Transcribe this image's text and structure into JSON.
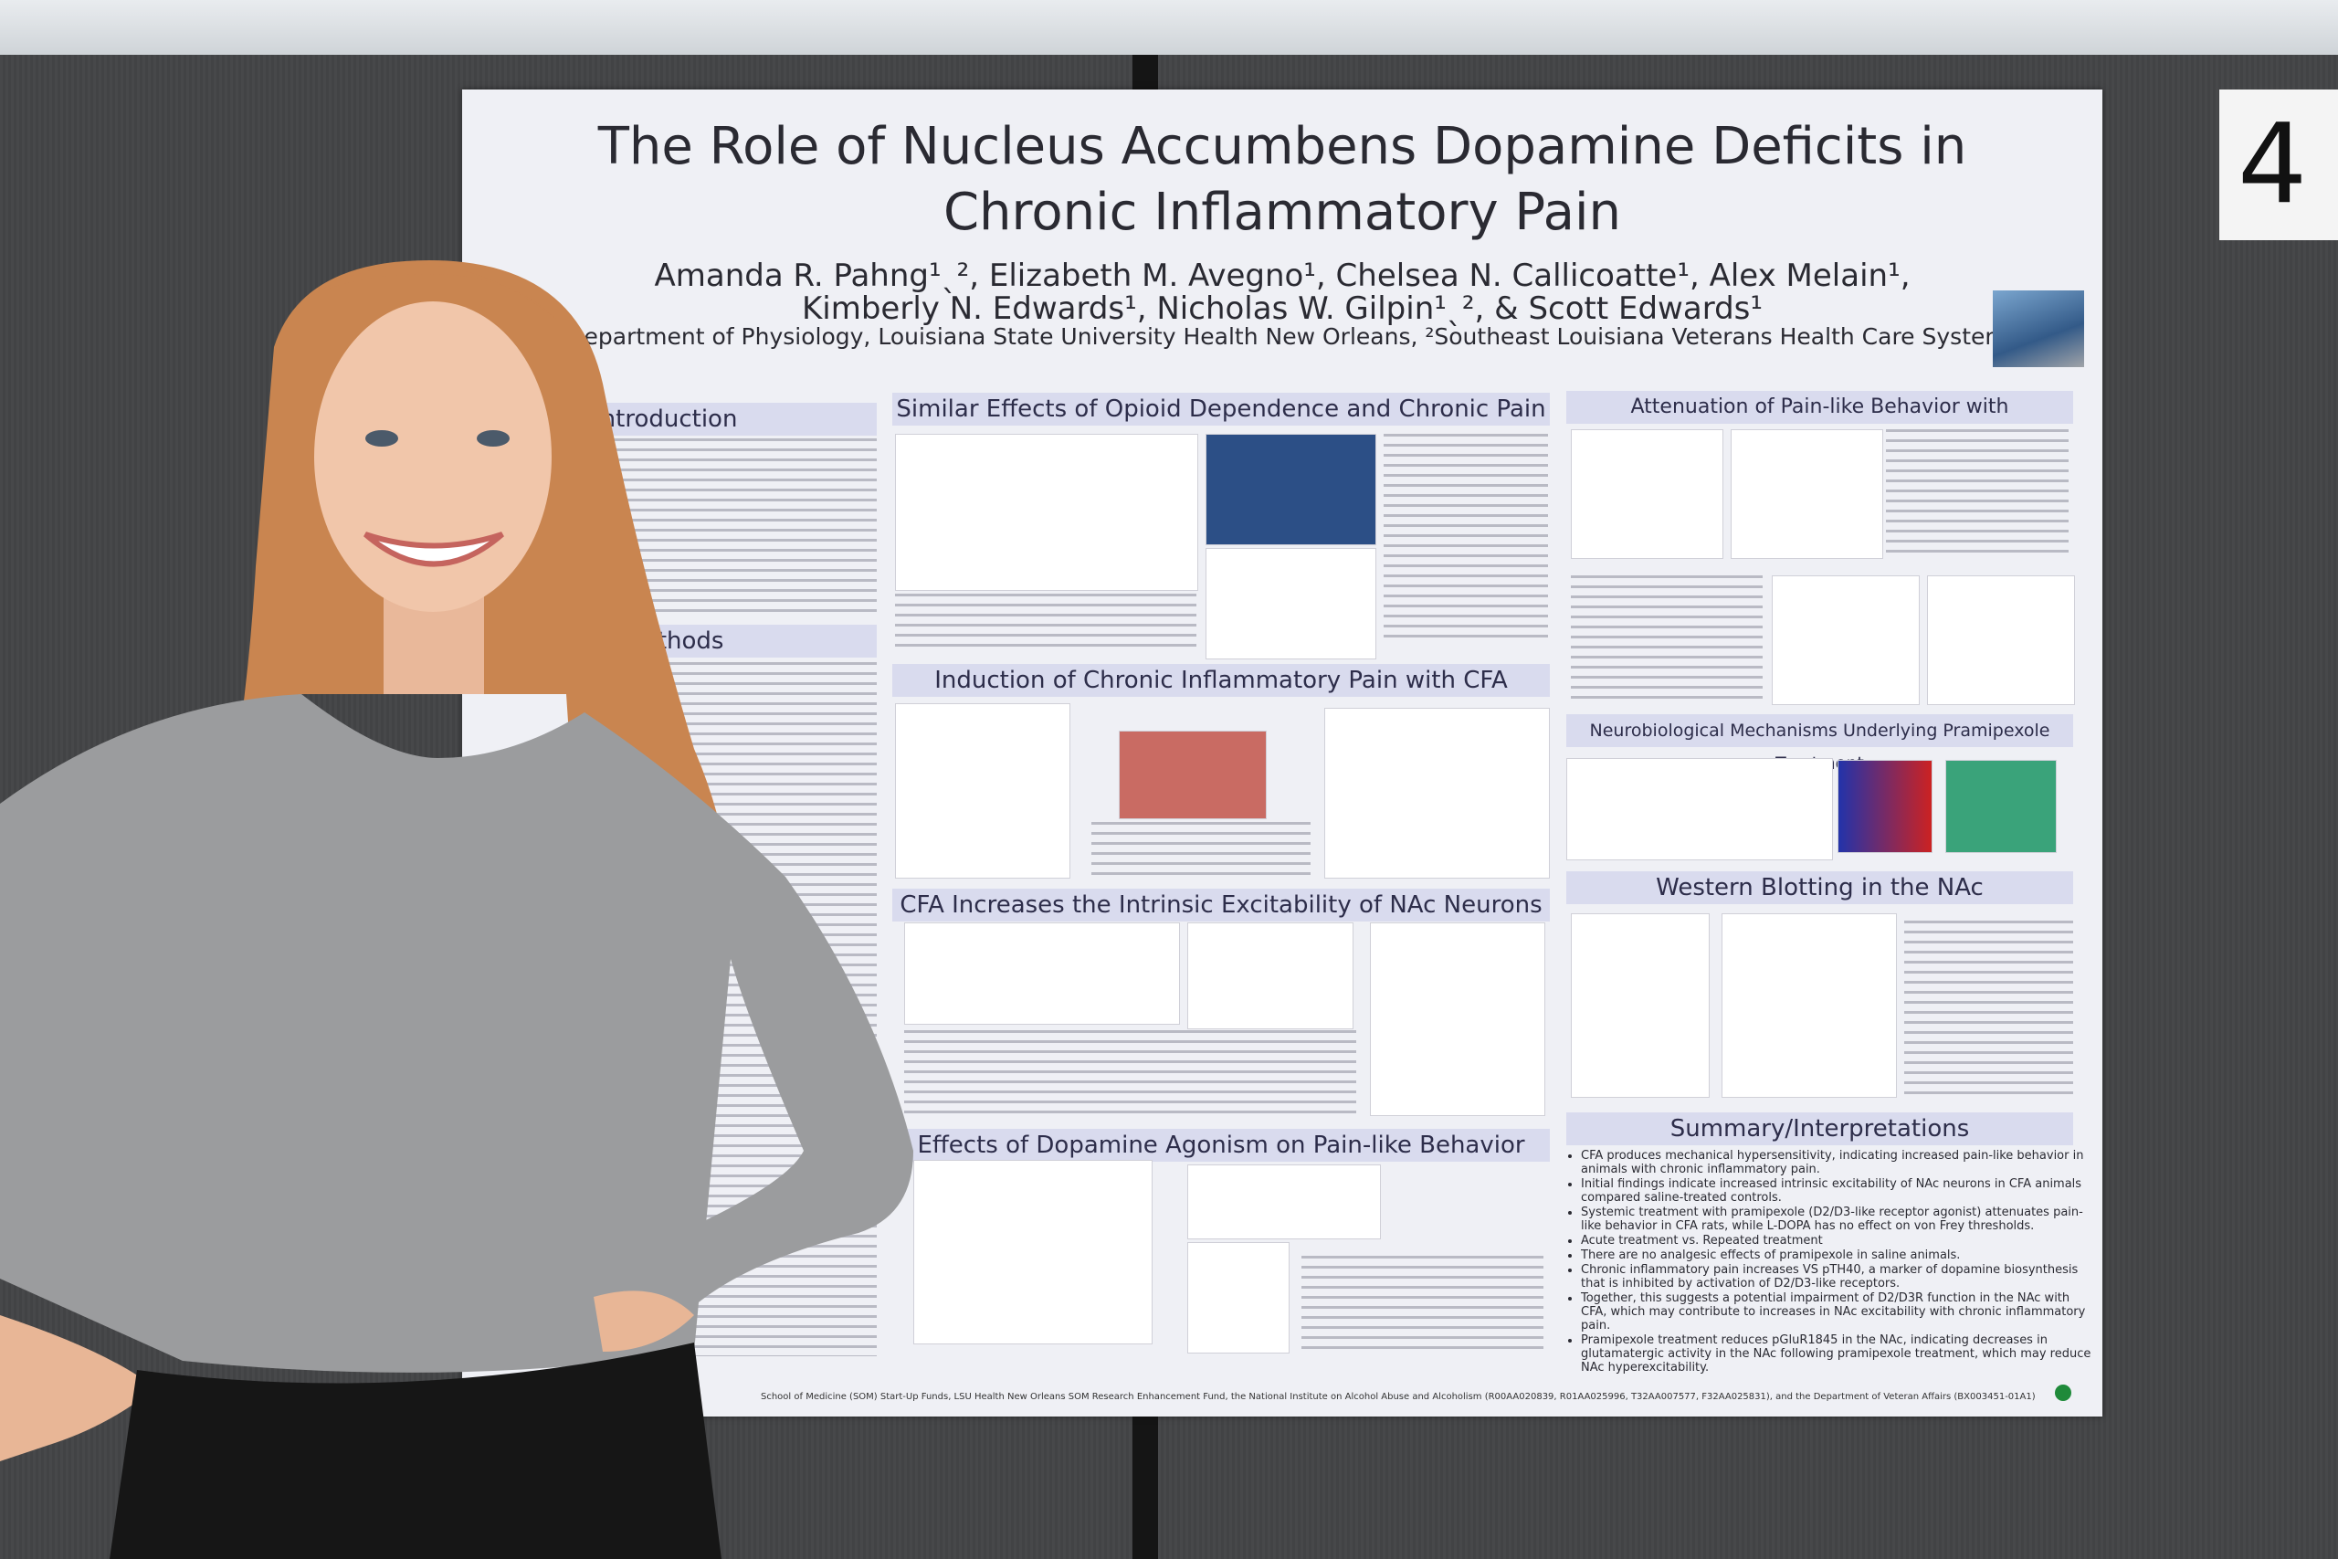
{
  "poster": {
    "title_lines": [
      "The Role of Nucleus Accumbens Dopamine Deficits in",
      "Chronic Inflammatory Pain"
    ],
    "author_lines": [
      "Amanda R. Pahng¹ˎ², Elizabeth M. Avegno¹, Chelsea N. Callicoatte¹, Alex Melain¹,",
      "Kimberly N. Edwards¹, Nicholas W. Gilpin¹ˎ², & Scott Edwards¹"
    ],
    "affiliation": "¹Department of Physiology, Louisiana State University Health New Orleans, ²Southeast Louisiana Veterans Health Care System",
    "sections": [
      "Introduction",
      "al Methods",
      "Similar Effects of Opioid Dependence and Chronic Pain",
      "Induction of Chronic Inflammatory Pain with CFA",
      "CFA Increases the Intrinsic Excitability of NAc Neurons",
      "Effects of Dopamine Agonism on Pain-like Behavior",
      "Attenuation of Pain-like Behavior with Pramipexole",
      "Neurobiological Mechanisms Underlying Pramipexole Treatment",
      "Western Blotting in the NAc",
      "Summary/Interpretations"
    ],
    "summary": [
      "CFA produces mechanical hypersensitivity, indicating increased pain-like behavior in animals with chronic inflammatory pain.",
      "Initial findings indicate increased intrinsic excitability of NAc neurons in CFA animals compared saline-treated controls.",
      "Systemic treatment with pramipexole (D2/D3-like receptor agonist) attenuates pain-like behavior in CFA rats, while L-DOPA has no effect on von Frey thresholds.",
      "Acute treatment vs. Repeated treatment",
      "There are no analgesic effects of pramipexole in saline animals.",
      "Chronic inflammatory pain increases VS pTH40, a marker of dopamine biosynthesis that is inhibited by activation of D2/D3-like receptors.",
      "Together, this suggests a potential impairment of D2/D3R function in the NAc with CFA, which may contribute to increases in NAc excitability with chronic inflammatory pain.",
      "Pramipexole treatment reduces pGluR1845 in the NAc, indicating decreases in glutamatergic activity in the NAc following pramipexole treatment, which may reduce NAc hyperexcitability."
    ],
    "funding": "School of Medicine (SOM) Start-Up Funds, LSU Health New Orleans SOM Research Enhancement Fund, the National Institute on Alcohol Abuse and Alcoholism (R00AA020839, R01AA025996, T32AA007577, F32AA025831), and the Department of Veteran Affairs (BX003451-01A1)"
  },
  "sign": {
    "number": "4"
  }
}
